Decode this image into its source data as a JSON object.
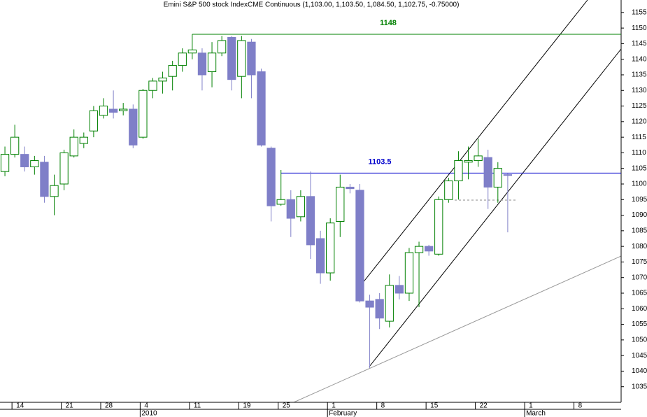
{
  "chart_data": {
    "type": "candlestick",
    "title": "Emini S&P 500 stock IndexCME Continuous (1,103.00, 1,103.50, 1,084.50, 1,102.75, -0.75000)",
    "categories": [
      null,
      "14",
      null,
      null,
      null,
      null,
      "21",
      null,
      null,
      null,
      "28",
      null,
      null,
      null,
      "4",
      null,
      null,
      null,
      null,
      "11",
      null,
      null,
      null,
      null,
      "19",
      null,
      null,
      null,
      "25",
      null,
      null,
      null,
      null,
      "1",
      null,
      null,
      null,
      null,
      "8",
      null,
      null,
      null,
      null,
      "15",
      null,
      null,
      null,
      null,
      "22",
      null,
      null,
      null,
      null,
      "1",
      null,
      null,
      null,
      null,
      "8",
      null,
      null,
      null,
      null
    ],
    "period_labels": [
      null,
      null,
      null,
      null,
      null,
      null,
      null,
      null,
      null,
      null,
      null,
      null,
      null,
      null,
      "2010",
      null,
      null,
      null,
      null,
      null,
      null,
      null,
      null,
      null,
      null,
      null,
      null,
      null,
      null,
      null,
      null,
      null,
      null,
      "February",
      null,
      null,
      null,
      null,
      null,
      null,
      null,
      null,
      null,
      null,
      null,
      null,
      null,
      null,
      null,
      null,
      null,
      null,
      null,
      "March",
      null,
      null,
      null,
      null,
      null,
      null,
      null,
      null,
      null
    ],
    "open": [
      1104,
      1109.5,
      1109.5,
      1105.5,
      1107,
      1096,
      1100,
      1109,
      1113,
      1117,
      1122,
      1124,
      1123.5,
      1124,
      1115,
      1130,
      1133,
      1134.5,
      1138,
      1142,
      1142,
      1136,
      1142,
      1147,
      1134.5,
      1145.5,
      1136,
      1111.5,
      1093.5,
      1095,
      1089.5,
      1096,
      1082.5,
      1071.5,
      1088,
      1099,
      1098,
      1062.5,
      1063,
      1056,
      1067.5,
      1065,
      1078,
      1080,
      1077.5,
      1095,
      1101,
      1107,
      1107.5,
      1108.5,
      1099,
      1103,
      null,
      null,
      null,
      null,
      null,
      null,
      null,
      null,
      null,
      null,
      null
    ],
    "high": [
      1112,
      1119,
      1112,
      1109,
      1109,
      1103,
      1111,
      1117.5,
      1116.5,
      1125,
      1127.5,
      1130,
      1126,
      1125.5,
      1130.5,
      1134,
      1136,
      1139.5,
      1143.5,
      1148,
      1143.5,
      1145.5,
      1147.5,
      1147.5,
      1147.5,
      1146.5,
      1137,
      1112,
      1104.5,
      1098,
      1098,
      1104,
      1085,
      1089,
      1103,
      1100,
      1100,
      1064.5,
      1065,
      1071,
      1070.5,
      1079.5,
      1081.5,
      1080.5,
      1096,
      1102,
      1110.5,
      1112,
      1114.5,
      1111,
      1107,
      1103.5,
      null,
      null,
      null,
      null,
      null,
      null,
      null,
      null,
      null,
      null,
      null
    ],
    "low": [
      1102.5,
      1108.5,
      1104,
      1103,
      1094,
      1090,
      1098,
      1108.5,
      1111.5,
      1115,
      1121,
      1121,
      1122,
      1111.5,
      1114.5,
      1127.5,
      1129,
      1130,
      1136,
      1140,
      1130,
      1131,
      1141,
      1130,
      1127.5,
      1127.5,
      1112,
      1088,
      1093,
      1083,
      1088,
      1076,
      1068,
      1069,
      1083,
      1097,
      1062,
      1041,
      1053.5,
      1054,
      1063,
      1062.5,
      1060.5,
      1077,
      1077,
      1094,
      1095,
      1101.5,
      1105.5,
      1092,
      1094,
      1084.5,
      null,
      null,
      null,
      null,
      null,
      null,
      null,
      null,
      null,
      null,
      null
    ],
    "close": [
      1109.5,
      1115,
      1105.5,
      1107.5,
      1096,
      1099.5,
      1110,
      1115,
      1115,
      1123.5,
      1125,
      1123,
      1124,
      1112.5,
      1130,
      1133,
      1134,
      1138,
      1142,
      1143,
      1135,
      1142,
      1146,
      1133.5,
      1146,
      1135,
      1112.5,
      1093,
      1095,
      1089,
      1096,
      1080.5,
      1071.5,
      1087.5,
      1099,
      1098.5,
      1062.5,
      1060.5,
      1057,
      1067.5,
      1065,
      1078,
      1080,
      1078.5,
      1095,
      1101,
      1107.5,
      1107.5,
      1109,
      1099,
      1105,
      1102.75,
      null,
      null,
      null,
      null,
      null,
      null,
      null,
      null,
      null,
      null,
      null
    ],
    "up_color": "#008000",
    "down_color": "#7f7fc8",
    "levels": [
      {
        "value": 1148,
        "color": "#008000"
      },
      {
        "value": 1103.5,
        "color": "#0000cc"
      }
    ],
    "ylim": [
      1030,
      1159
    ],
    "yticks": [
      1035,
      1040,
      1045,
      1050,
      1055,
      1060,
      1065,
      1070,
      1075,
      1080,
      1085,
      1090,
      1095,
      1100,
      1105,
      1110,
      1115,
      1120,
      1125,
      1130,
      1135,
      1140,
      1145,
      1150,
      1155
    ],
    "y_axis_side": "right",
    "grid": false
  }
}
